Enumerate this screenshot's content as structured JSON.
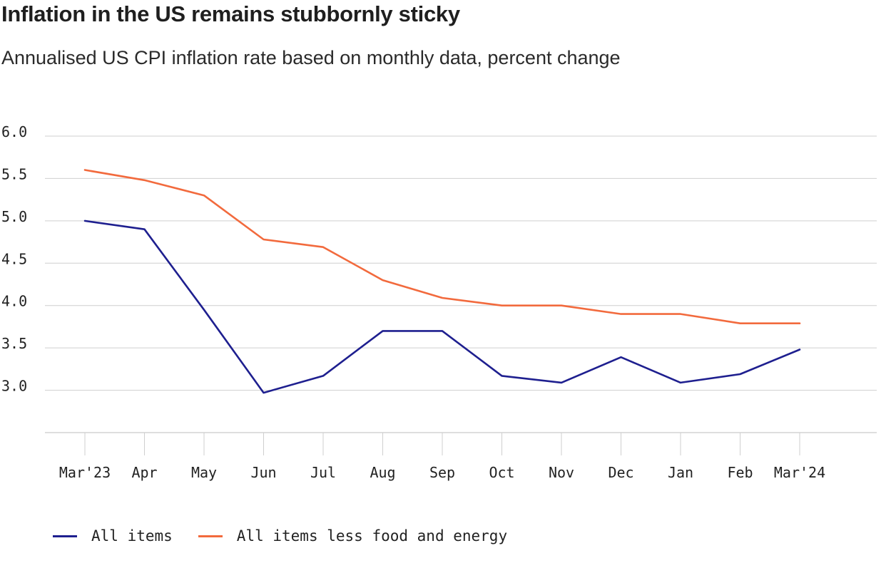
{
  "title": "Inflation in the US remains stubbornly sticky",
  "subtitle": "Annualised US CPI inflation rate based on monthly data, percent change",
  "chart_data": {
    "type": "line",
    "title": "Inflation in the US remains stubbornly sticky",
    "subtitle": "Annualised US CPI inflation rate based on monthly data, percent change",
    "categories": [
      "Mar'23",
      "Apr",
      "May",
      "Jun",
      "Jul",
      "Aug",
      "Sep",
      "Oct",
      "Nov",
      "Dec",
      "Jan",
      "Feb",
      "Mar'24"
    ],
    "series": [
      {
        "name": "All items",
        "color": "#1e1f8f",
        "values": [
          5.0,
          4.9,
          3.95,
          2.97,
          3.17,
          3.7,
          3.7,
          3.17,
          3.09,
          3.39,
          3.09,
          3.19,
          3.48
        ]
      },
      {
        "name": "All items less food and energy",
        "color": "#f26a3d",
        "values": [
          5.6,
          5.48,
          5.3,
          4.78,
          4.69,
          4.3,
          4.09,
          4.0,
          4.0,
          3.9,
          3.9,
          3.79,
          3.79
        ]
      }
    ],
    "yticks": [
      "6.0",
      "5.5",
      "5.0",
      "4.5",
      "4.0",
      "3.5",
      "3.0"
    ],
    "ylim": [
      2.5,
      6.0
    ],
    "xlabel": "",
    "ylabel": "",
    "grid": true,
    "legend": "bottom-left"
  }
}
